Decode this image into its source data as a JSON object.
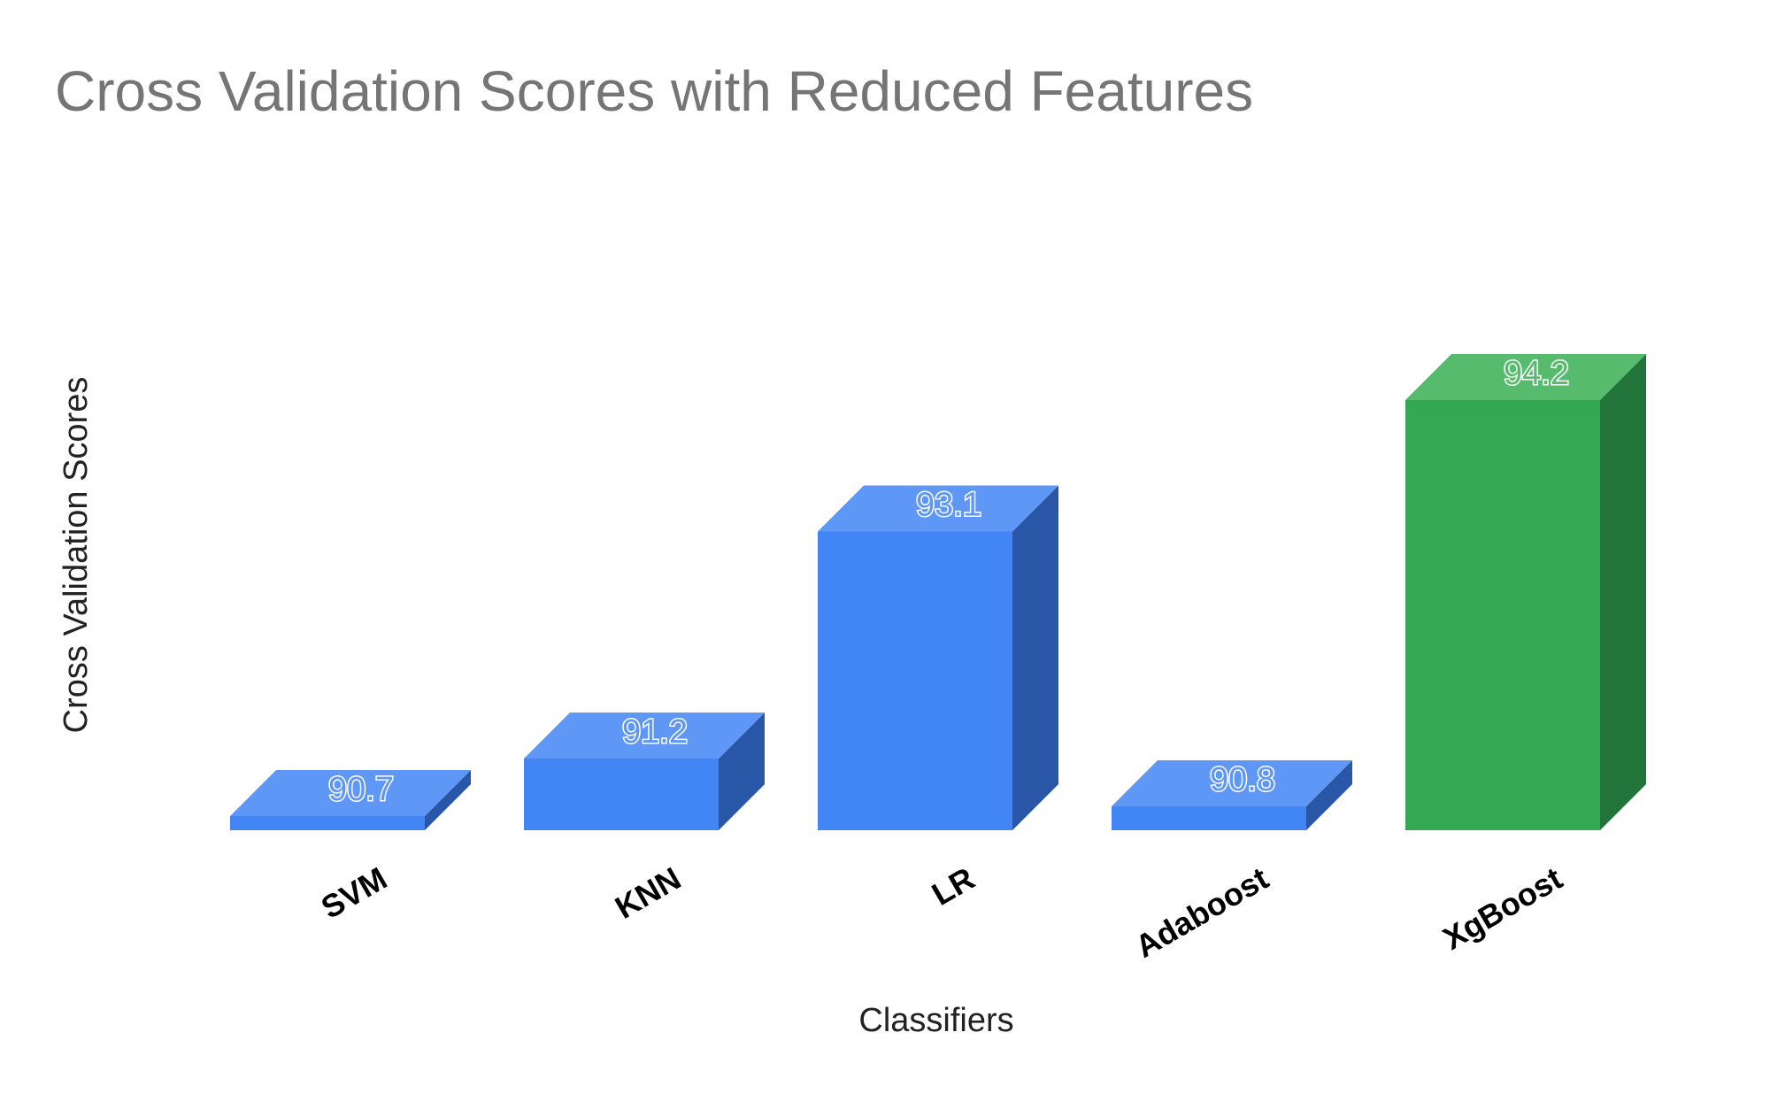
{
  "chart_data": {
    "type": "bar",
    "title": "Cross Validation Scores with Reduced Features",
    "xlabel": "Classifiers",
    "ylabel": "Cross Validation Scores",
    "categories": [
      "SVM",
      "KNN",
      "LR",
      "Adaboost",
      "XgBoost"
    ],
    "series": [
      {
        "values": [
          90.7,
          91.2,
          93.1,
          90.8,
          94.2
        ]
      }
    ],
    "data_labels": [
      "90.7",
      "91.2",
      "93.1",
      "90.8",
      "94.2"
    ],
    "ylim": [
      90.6,
      94.2
    ],
    "grid": false,
    "legend": "none",
    "three_d": true,
    "colors": {
      "bar_front": [
        "#4285f4",
        "#4285f4",
        "#4285f4",
        "#4285f4",
        "#34a853"
      ],
      "bar_top": [
        "#5e97f6",
        "#5e97f6",
        "#5e97f6",
        "#5e97f6",
        "#57bb6e"
      ],
      "bar_side": [
        "#2a56a8",
        "#2a56a8",
        "#2a56a8",
        "#2a56a8",
        "#22743a"
      ],
      "label": [
        "#5e97f6",
        "#5e97f6",
        "#5e97f6",
        "#5e97f6",
        "#57bb6e"
      ]
    }
  }
}
